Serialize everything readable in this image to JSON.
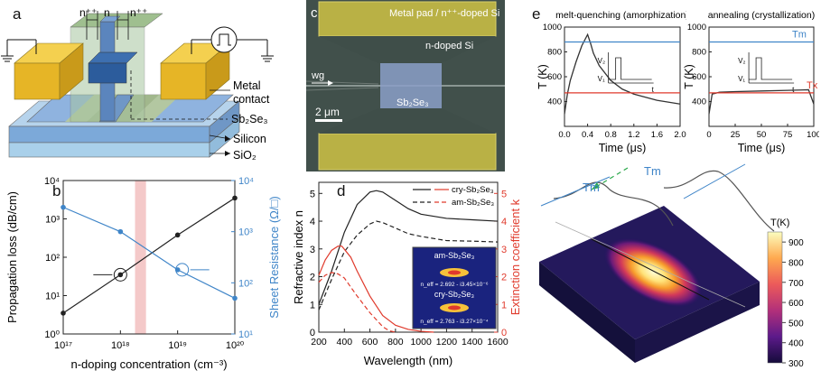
{
  "panel_labels": {
    "a": "a",
    "b": "b",
    "c": "c",
    "d": "d",
    "e": "e"
  },
  "panel_a": {
    "n_left": "n⁺⁺",
    "n_mid": "n",
    "n_right": "n⁺⁺",
    "metal_contact": "Metal\ncontact",
    "sb2se3": "Sb₂Se₃",
    "silicon": "Silicon",
    "sio2": "SiO₂"
  },
  "panel_c": {
    "metal_pad": "Metal pad / n⁺⁺-doped Si",
    "n_doped": "n-doped Si",
    "wg": "wg",
    "sb2se3": "Sb₂Se₃",
    "scale": "2 μm"
  },
  "colors": {
    "blue_axis": "#3f85c8",
    "red": "#e03a2c",
    "gold": "#e8b52a",
    "silicon": "#8fb3df",
    "sem_bg": "#3b4a46",
    "highlight": "#f4c9c9"
  },
  "chart_data": [
    {
      "id": "b",
      "type": "line",
      "xlabel": "n-doping concentration (cm⁻³)",
      "ylabel": "Propagation loss (dB/cm)",
      "y2label": "Sheet Resistance (Ω/□)",
      "xscale": "log",
      "yscale": "log",
      "xlim": [
        1e+17,
        1e+20
      ],
      "ylim": [
        1,
        10000
      ],
      "y2lim": [
        10,
        10000
      ],
      "xticks": [
        "10¹⁷",
        "10¹⁸",
        "10¹⁹",
        "10²⁰"
      ],
      "yticks": [
        "10⁰",
        "10¹",
        "10²",
        "10³",
        "10⁴"
      ],
      "y2ticks": [
        "10¹",
        "10²",
        "10³",
        "10⁴"
      ],
      "highlight_band": [
        1.8e+18,
        2.8e+18
      ],
      "series": [
        {
          "axis": "left",
          "color": "#222222",
          "x": [
            1e+17,
            1e+18,
            1e+19,
            1e+20
          ],
          "y": [
            3.5,
            35,
            380,
            3500
          ]
        },
        {
          "axis": "right",
          "color": "#3f85c8",
          "x": [
            1e+17,
            1e+18,
            1e+19,
            1e+20
          ],
          "y": [
            3000,
            1000,
            180,
            50
          ]
        }
      ]
    },
    {
      "id": "d",
      "type": "line",
      "xlabel": "Wavelength (nm)",
      "ylabel": "Refractive index n",
      "y2label": "Extinction coefficient k",
      "xlim": [
        200,
        1600
      ],
      "ylim": [
        0,
        5.4
      ],
      "y2lim": [
        0,
        5.4
      ],
      "xticks": [
        "200",
        "400",
        "600",
        "800",
        "1000",
        "1200",
        "1400",
        "1600"
      ],
      "yticks": [
        "0",
        "1",
        "2",
        "3",
        "4",
        "5"
      ],
      "y2ticks": [
        "0",
        "1",
        "2",
        "3",
        "4",
        "5"
      ],
      "legend": [
        "cry-Sb₂Se₃",
        "am-Sb₂Se₃"
      ],
      "series": [
        {
          "name": "cry-Sb₂Se₃",
          "quantity": "n",
          "style": "solid",
          "color": "#222222",
          "x": [
            200,
            300,
            400,
            500,
            600,
            650,
            700,
            800,
            900,
            1000,
            1200,
            1400,
            1600
          ],
          "y": [
            1.0,
            2.2,
            3.6,
            4.6,
            5.05,
            5.1,
            5.05,
            4.75,
            4.45,
            4.25,
            4.1,
            4.05,
            4.0
          ]
        },
        {
          "name": "am-Sb₂Se₃",
          "quantity": "n",
          "style": "dashed",
          "color": "#222222",
          "x": [
            200,
            300,
            400,
            500,
            600,
            650,
            700,
            800,
            900,
            1000,
            1200,
            1400,
            1600
          ],
          "y": [
            0.8,
            1.9,
            2.9,
            3.5,
            3.9,
            4.0,
            3.95,
            3.75,
            3.55,
            3.45,
            3.3,
            3.28,
            3.25
          ]
        },
        {
          "name": "cry-Sb₂Se₃",
          "quantity": "k",
          "style": "solid",
          "color": "#e03a2c",
          "x": [
            200,
            250,
            300,
            350,
            380,
            450,
            500,
            600,
            700,
            800,
            900,
            1000,
            1100
          ],
          "y": [
            2.05,
            2.6,
            2.95,
            3.1,
            3.1,
            2.7,
            2.2,
            1.3,
            0.6,
            0.25,
            0.1,
            0.03,
            0.0
          ]
        },
        {
          "name": "am-Sb₂Se₃",
          "quantity": "k",
          "style": "dashed",
          "color": "#e03a2c",
          "x": [
            200,
            250,
            300,
            350,
            400,
            500,
            600,
            700,
            750,
            800
          ],
          "y": [
            1.8,
            2.05,
            2.15,
            2.1,
            1.95,
            1.3,
            0.7,
            0.2,
            0.05,
            0.0
          ]
        }
      ],
      "inset": {
        "am": "am-Sb₂Se₃",
        "am_neff": "n_eff = 2.692 - i3.45×10⁻⁶",
        "cry": "cry-Sb₂Se₃",
        "cry_neff": "n_eff = 2.763 - i3.27×10⁻⁴"
      }
    },
    {
      "id": "e1",
      "type": "line",
      "title": "melt-quenching (amorphization)",
      "xlabel": "Time (μs)",
      "ylabel": "T (K)",
      "xlim": [
        0,
        2.0
      ],
      "ylim": [
        200,
        1000
      ],
      "xticks": [
        "0.0",
        "0.4",
        "0.8",
        "1.2",
        "1.6",
        "2.0"
      ],
      "yticks": [
        "400",
        "600",
        "800",
        "1000"
      ],
      "series": [
        {
          "name": "T",
          "color": "#333333",
          "x": [
            0,
            0.05,
            0.1,
            0.2,
            0.3,
            0.4,
            0.45,
            0.5,
            0.6,
            0.8,
            1.0,
            1.2,
            1.6,
            2.0
          ],
          "y": [
            300,
            460,
            570,
            720,
            850,
            940,
            870,
            790,
            690,
            570,
            500,
            460,
            410,
            380
          ]
        },
        {
          "name": "Tm",
          "color": "#3f85c8",
          "x": [
            0,
            2.0
          ],
          "y": [
            880,
            880
          ]
        },
        {
          "name": "Tx",
          "color": "#e03a2c",
          "x": [
            0,
            2.0
          ],
          "y": [
            470,
            470
          ]
        }
      ],
      "inset_labels": {
        "v2": "V₂",
        "v1": "V₁",
        "t": "t"
      }
    },
    {
      "id": "e2",
      "type": "line",
      "title": "annealing (crystallization)",
      "xlabel": "Time (μs)",
      "ylabel": "T (K)",
      "xlim": [
        0,
        100
      ],
      "ylim": [
        200,
        1000
      ],
      "xticks": [
        "0",
        "25",
        "50",
        "75",
        "100"
      ],
      "yticks": [
        "400",
        "600",
        "800",
        "1000"
      ],
      "series": [
        {
          "name": "T",
          "color": "#333333",
          "x": [
            0,
            3,
            10,
            25,
            50,
            75,
            95,
            100
          ],
          "y": [
            300,
            460,
            475,
            480,
            485,
            490,
            495,
            380
          ]
        },
        {
          "name": "Tm",
          "color": "#3f85c8",
          "x": [
            0,
            100
          ],
          "y": [
            880,
            880
          ]
        },
        {
          "name": "Tx",
          "color": "#e03a2c",
          "x": [
            0,
            100
          ],
          "y": [
            470,
            470
          ]
        }
      ],
      "labels": {
        "tm": "Tm",
        "tx": "Tx"
      },
      "inset_labels": {
        "v2": "V₂",
        "v1": "V₁",
        "t": "t"
      }
    }
  ],
  "colorbar": {
    "title": "T(K)",
    "ticks": [
      "900",
      "800",
      "700",
      "600",
      "500",
      "400",
      "300"
    ],
    "range": [
      300,
      950
    ]
  },
  "panel_e3": {
    "tm1": "Tm",
    "tm2": "Tm"
  }
}
